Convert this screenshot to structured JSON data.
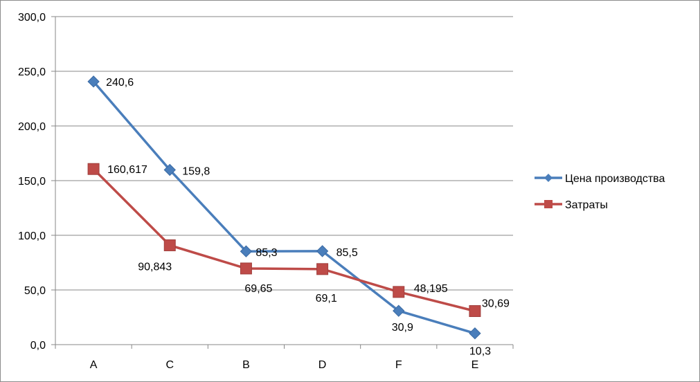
{
  "chart_data": {
    "type": "line",
    "title": "",
    "xlabel": "",
    "ylabel": "",
    "categories": [
      "A",
      "C",
      "B",
      "D",
      "F",
      "E"
    ],
    "ylim": [
      0,
      300
    ],
    "y_ticks": [
      "0,0",
      "50,0",
      "100,0",
      "150,0",
      "200,0",
      "250,0",
      "300,0"
    ],
    "grid": true,
    "legend_position": "right",
    "series": [
      {
        "name": "Цена производства",
        "color": "#4a7ebb",
        "marker": "diamond",
        "values": [
          240.6,
          159.8,
          85.3,
          85.5,
          30.9,
          10.3
        ],
        "labels": [
          "240,6",
          "159,8",
          "85,3",
          "85,5",
          "30,9",
          "10,3"
        ]
      },
      {
        "name": "Затраты",
        "color": "#be4b48",
        "marker": "square",
        "values": [
          160.617,
          90.843,
          69.65,
          69.1,
          48.195,
          30.69
        ],
        "labels": [
          "160,617",
          "90,843",
          "69,65",
          "69,1",
          "48,195",
          "30,69"
        ]
      }
    ]
  }
}
